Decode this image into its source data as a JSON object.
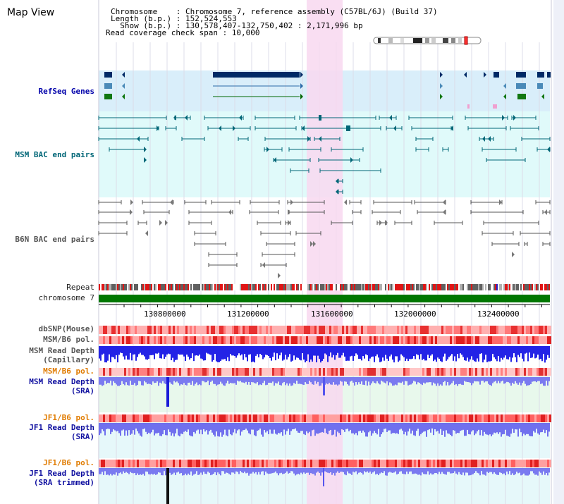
{
  "title": "Map View",
  "info": {
    "chromosome": "Chromosome    : Chromosome 7, reference assembly (C57BL/6J) (Build 37)",
    "length": "Length (b.p.) : 152,524,553",
    "show": "  Show (b.p.) : 130,578,407-132,750,402 : 2,171,996 bp",
    "span": "Read coverage check span : 10,000"
  },
  "tracks": {
    "refseq": "RefSeq Genes",
    "msm_bac": "MSM BAC end pairs",
    "b6n_bac": "B6N BAC end pairs",
    "repeat": "Repeat",
    "chromosome": "chromosome 7",
    "dbsnp": "dbSNP(Mouse)",
    "msm_b6_pol_1": "MSM/B6 pol.",
    "msm_depth_cap_1": "MSM Read Depth",
    "msm_depth_cap_2": "(Capillary)",
    "msm_b6_pol_2": "MSM/B6 pol.",
    "msm_depth_sra_1": "MSM Read Depth",
    "msm_depth_sra_2": "(SRA)",
    "jf1_b6_pol_1": "JF1/B6 pol.",
    "jf1_depth_sra_1": "JF1 Read Depth",
    "jf1_depth_sra_2": "(SRA)",
    "jf1_b6_pol_2": "JF1/B6 pol.",
    "jf1_depth_trim_1": "JF1 Read Depth",
    "jf1_depth_trim_2": "(SRA trimmed)"
  },
  "axis_ticks": [
    "130800000",
    "131200000",
    "131600000",
    "132000000",
    "132400000"
  ],
  "colors": {
    "highlight": "#f8d8f0",
    "refseq_bg": "#d9eefa",
    "msm_bg": "#e0fafa",
    "gene_dark": "#002a66",
    "bac_teal": "#006677",
    "chromosome_green": "#007700",
    "depth_blue": "#2323e6"
  }
}
